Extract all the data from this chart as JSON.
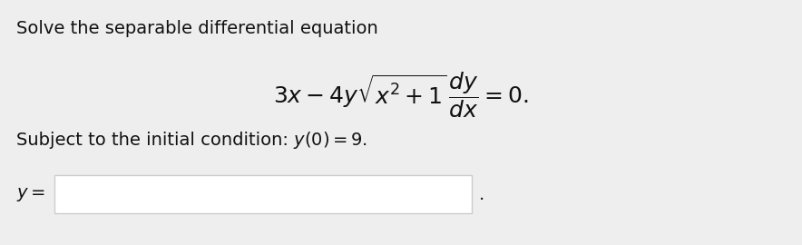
{
  "background_color": "#eeeeee",
  "title_text": "Solve the separable differential equation",
  "title_fontsize": 14,
  "eq_latex": "$3x - 4y\\sqrt{x^2+1}\\,\\dfrac{dy}{dx} = 0.$",
  "eq_fontsize": 18,
  "ic_text_pre": "Subject to the initial condition: ",
  "ic_math": "$y(0) = 9.$",
  "ic_fontsize": 14,
  "ylabel_text": "$y =$",
  "ylabel_fontsize": 14,
  "box_border_color": "#cccccc",
  "text_color": "#111111"
}
